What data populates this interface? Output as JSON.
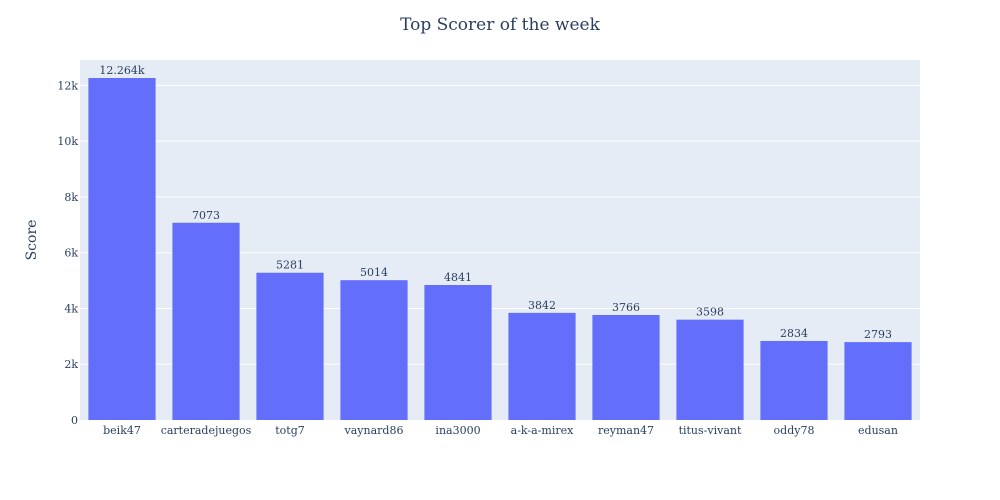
{
  "chart_data": {
    "type": "bar",
    "title": "Top Scorer of the week",
    "xlabel": "",
    "ylabel": "Score",
    "categories": [
      "beik47",
      "carteradejuegos",
      "totg7",
      "vaynard86",
      "ina3000",
      "a-k-a-mirex",
      "reyman47",
      "titus-vivant",
      "oddy78",
      "edusan"
    ],
    "values": [
      12264,
      7073,
      5281,
      5014,
      4841,
      3842,
      3766,
      3598,
      2834,
      2793
    ],
    "data_labels": [
      "12.264k",
      "7073",
      "5281",
      "5014",
      "4841",
      "3842",
      "3766",
      "3598",
      "2834",
      "2793"
    ],
    "ylim": [
      0,
      12910
    ],
    "yticks": [
      0,
      2000,
      4000,
      6000,
      8000,
      10000,
      12000
    ],
    "ytick_labels": [
      "0",
      "2k",
      "4k",
      "6k",
      "8k",
      "10k",
      "12k"
    ],
    "grid": true,
    "legend": "none",
    "colors": {
      "bar": "#636efa",
      "plot_bg": "#e5ecf6",
      "grid": "#ffffff",
      "text": "#2a3f5f"
    }
  }
}
